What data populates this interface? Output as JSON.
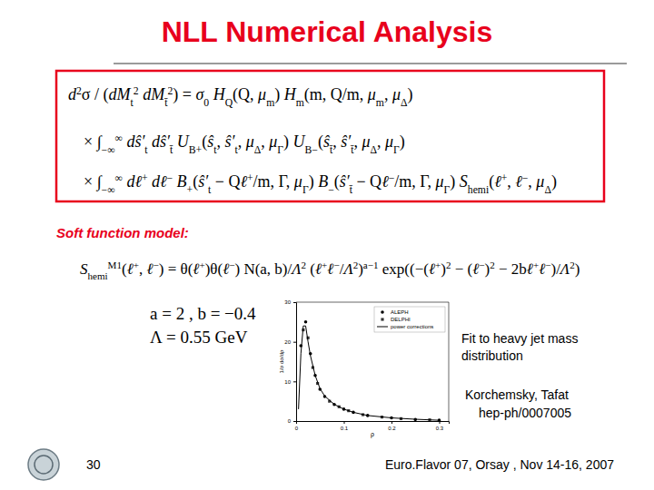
{
  "slide": {
    "title": "NLL Numerical Analysis",
    "equation": [
      [
        {
          "b": "d",
          "sup": "2"
        },
        "σ / (",
        {
          "b": "dM",
          "sub": "t",
          "sup": "2"
        },
        " ",
        {
          "b": "dM",
          "sub": "t̄",
          "sup": "2"
        },
        ") = ",
        {
          "b": "σ",
          "sub": "0"
        },
        " ",
        {
          "b": "H",
          "sub": "Q"
        },
        "(Q, ",
        {
          "b": "μ",
          "sub": "m"
        },
        ") ",
        {
          "b": "H",
          "sub": "m"
        },
        "(m, Q/m, ",
        {
          "b": "μ",
          "sub": "m"
        },
        ", ",
        {
          "b": "μ",
          "sub": "Δ"
        },
        ")"
      ],
      [
        "× ",
        {
          "b": "∫",
          "sub": "−∞",
          "sup": "∞"
        },
        " ",
        {
          "b": "dŝ′",
          "sub": "t"
        },
        " ",
        {
          "b": "dŝ′",
          "sub": "t̄"
        },
        " ",
        {
          "b": "U",
          "sub": "B+"
        },
        "(",
        {
          "b": "ŝ",
          "sub": "t"
        },
        ", ",
        {
          "b": "ŝ′",
          "sub": "t"
        },
        ", ",
        {
          "b": "μ",
          "sub": "Δ"
        },
        ", ",
        {
          "b": "μ",
          "sub": "Γ"
        },
        ") ",
        {
          "b": "U",
          "sub": "B−"
        },
        "(",
        {
          "b": "ŝ",
          "sub": "t̄"
        },
        ", ",
        {
          "b": "ŝ′",
          "sub": "t̄"
        },
        ", ",
        {
          "b": "μ",
          "sub": "Δ"
        },
        ", ",
        {
          "b": "μ",
          "sub": "Γ"
        },
        ")"
      ],
      [
        "× ",
        {
          "b": "∫",
          "sub": "−∞",
          "sup": "∞"
        },
        " ",
        {
          "b": "dℓ",
          "sup": "+"
        },
        " ",
        {
          "b": "dℓ",
          "sup": "−"
        },
        " ",
        {
          "b": "B",
          "sub": "+"
        },
        "(",
        {
          "b": "ŝ′",
          "sub": "t"
        },
        " − Q",
        {
          "b": "ℓ",
          "sup": "+"
        },
        "/m, Γ, ",
        {
          "b": "μ",
          "sub": "Γ"
        },
        ") ",
        {
          "b": "B",
          "sub": "−"
        },
        "(",
        {
          "b": "ŝ′",
          "sub": "t̄"
        },
        " − Q",
        {
          "b": "ℓ",
          "sup": "−"
        },
        "/m, Γ, ",
        {
          "b": "μ",
          "sub": "Γ"
        },
        ") ",
        {
          "b": "S",
          "sub": "hemi"
        },
        "(",
        {
          "b": "ℓ",
          "sup": "+"
        },
        ", ",
        {
          "b": "ℓ",
          "sup": "−"
        },
        ", ",
        {
          "b": "μ",
          "sub": "Δ"
        },
        ")"
      ]
    ],
    "soft_model_label": "Soft function model:",
    "soft_model": [
      {
        "b": "S",
        "sub": "hemi",
        "sup": "M1"
      },
      "(",
      {
        "b": "ℓ",
        "sup": "+"
      },
      ", ",
      {
        "b": "ℓ",
        "sup": "−"
      },
      ") = θ(",
      {
        "b": "ℓ",
        "sup": "+"
      },
      ")θ(",
      {
        "b": "ℓ",
        "sup": "−"
      },
      ") N(a, b)/",
      {
        "b": "Λ",
        "sup": "2"
      },
      " (",
      {
        "b": "ℓ",
        "sup": "+"
      },
      {
        "b": "ℓ",
        "sup": "−"
      },
      "/",
      {
        "b": "Λ",
        "sup": "2"
      },
      ")",
      {
        "sup": "a−1"
      },
      " exp((−(",
      {
        "b": "ℓ",
        "sup": "+"
      },
      ")",
      {
        "sup": "2"
      },
      " − (",
      {
        "b": "ℓ",
        "sup": "−"
      },
      ")",
      {
        "sup": "2"
      },
      " − 2b",
      {
        "b": "ℓ",
        "sup": "+"
      },
      {
        "b": "ℓ",
        "sup": "−"
      },
      ")/",
      {
        "b": "Λ",
        "sup": "2"
      },
      ")"
    ],
    "parameters": [
      [
        "a = 2 ,   b = −0.4"
      ],
      [
        "Λ = 0.55 GeV"
      ]
    ],
    "caption": [
      "Fit to heavy jet mass",
      "distribution"
    ],
    "reference": [
      "Korchemsky, Tafat",
      "hep-ph/0007005"
    ],
    "page_number": "30",
    "footer": "Euro.Flavor 07, Orsay , Nov 14-16, 2007"
  },
  "chart_data": {
    "type": "scatter",
    "xlabel": "ρ",
    "ylabel": "1/σ dσ/dρ",
    "xlim": [
      0,
      0.32
    ],
    "ylim": [
      0,
      30
    ],
    "xticks": [
      0,
      0.1,
      0.2,
      0.3
    ],
    "yticks": [
      0,
      10,
      20,
      30
    ],
    "legend": "upper right",
    "series": [
      {
        "name": "ALEPH",
        "type": "scatter",
        "marker": "circle",
        "color": "#000000",
        "x": [
          0.01,
          0.02,
          0.03,
          0.04,
          0.05,
          0.06,
          0.08,
          0.1,
          0.12,
          0.15,
          0.2,
          0.25,
          0.3
        ],
        "values": [
          19,
          25,
          17,
          11.5,
          8,
          6.2,
          4.2,
          3,
          2.2,
          1.4,
          0.8,
          0.4,
          0.2
        ]
      },
      {
        "name": "DELPHI",
        "type": "scatter",
        "marker": "square",
        "color": "#333333",
        "x": [
          0.015,
          0.025,
          0.035,
          0.045,
          0.07,
          0.09,
          0.11,
          0.14,
          0.18,
          0.22,
          0.28
        ],
        "values": [
          23,
          21,
          13.5,
          9.5,
          5,
          3.6,
          2.6,
          1.6,
          1,
          0.6,
          0.3
        ]
      },
      {
        "name": "power corrections",
        "type": "line",
        "line_style": "solid",
        "color": "#000000",
        "x": [
          0.005,
          0.01,
          0.015,
          0.02,
          0.025,
          0.03,
          0.04,
          0.05,
          0.06,
          0.08,
          0.1,
          0.12,
          0.15,
          0.2,
          0.25,
          0.3
        ],
        "values": [
          3,
          17,
          24,
          24,
          20,
          16.5,
          11.5,
          8.2,
          6.3,
          4.2,
          3,
          2.2,
          1.4,
          0.8,
          0.45,
          0.2
        ]
      }
    ]
  }
}
